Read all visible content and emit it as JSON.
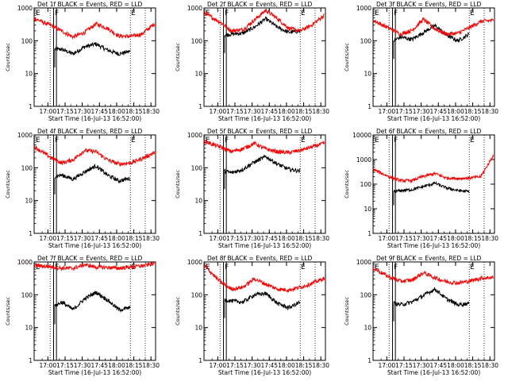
{
  "figure": {
    "start_time_label": "Start Time (16-Jul-13 16:52:00)",
    "ylabel": "Counts/sec",
    "colors": {
      "events": "#000000",
      "lld": "#ff0000",
      "axes": "#000000",
      "background": "#ffffff"
    }
  },
  "chart_data": [
    {
      "type": "line",
      "title": "Det 1f BLACK = Events, RED = LLD",
      "xlabel": "Start Time (16-Jul-13 16:52:00)",
      "ylabel": "Counts/sec",
      "yscale": "log",
      "ylim": [
        1,
        1000
      ],
      "xlim_min": [
        -4,
        102
      ],
      "x_ticks": [
        8,
        23,
        38,
        53,
        68,
        83,
        98
      ],
      "x_tick_labels": [
        "17:00",
        "17:15",
        "17:30",
        "17:45",
        "18:00",
        "18:15",
        "18:30"
      ],
      "y_ticks": [
        1,
        10,
        100,
        1000
      ],
      "y_tick_labels": [
        "1",
        "10",
        "100",
        "1000"
      ],
      "markers": [
        "E",
        "F",
        "E"
      ],
      "series": [
        {
          "name": "Events",
          "color": "#000000",
          "x": [
            14,
            20,
            30,
            40,
            50,
            60,
            70,
            80
          ],
          "y": [
            55,
            55,
            40,
            65,
            80,
            52,
            40,
            48
          ]
        },
        {
          "name": "LLD",
          "color": "#ff0000",
          "x": [
            -4,
            10,
            20,
            30,
            40,
            50,
            60,
            70,
            80,
            90,
            101
          ],
          "y": [
            480,
            300,
            200,
            130,
            180,
            330,
            240,
            140,
            135,
            160,
            330
          ]
        }
      ]
    },
    {
      "type": "line",
      "title": "Det 2f BLACK = Events, RED = LLD",
      "xlabel": "Start Time (16-Jul-13 16:52:00)",
      "ylabel": "Counts/sec",
      "yscale": "log",
      "ylim": [
        1,
        1000
      ],
      "x_ticks": [
        8,
        23,
        38,
        53,
        68,
        83,
        98
      ],
      "x_tick_labels": [
        "17:00",
        "17:15",
        "17:30",
        "17:45",
        "18:00",
        "18:15",
        "18:30"
      ],
      "y_ticks": [
        1,
        10,
        100,
        1000
      ],
      "y_tick_labels": [
        "1",
        "10",
        "100",
        "1000"
      ],
      "markers": [
        "E",
        "F",
        "E"
      ],
      "series": [
        {
          "name": "Events",
          "color": "#000000",
          "x": [
            14,
            20,
            30,
            40,
            50,
            60,
            70,
            80
          ],
          "y": [
            150,
            160,
            170,
            260,
            470,
            260,
            180,
            200
          ]
        },
        {
          "name": "LLD",
          "color": "#ff0000",
          "x": [
            -4,
            10,
            20,
            30,
            40,
            50,
            60,
            70,
            80,
            90,
            101
          ],
          "y": [
            720,
            370,
            200,
            220,
            430,
            850,
            480,
            240,
            200,
            300,
            600
          ]
        }
      ]
    },
    {
      "type": "line",
      "title": "Det 3f BLACK = Events, RED = LLD",
      "xlabel": "Start Time (16-Jul-13 16:52:00)",
      "ylabel": "Counts/sec",
      "yscale": "log",
      "ylim": [
        1,
        1000
      ],
      "x_ticks": [
        8,
        23,
        38,
        53,
        68,
        83,
        98
      ],
      "x_tick_labels": [
        "17:00",
        "17:15",
        "17:30",
        "17:45",
        "18:00",
        "18:15",
        "18:30"
      ],
      "y_ticks": [
        1,
        10,
        100,
        1000
      ],
      "y_tick_labels": [
        "1",
        "10",
        "100",
        "1000"
      ],
      "markers": [
        "E",
        "F",
        "E"
      ],
      "series": [
        {
          "name": "Events",
          "color": "#000000",
          "x": [
            14,
            20,
            30,
            40,
            50,
            60,
            70,
            80
          ],
          "y": [
            100,
            130,
            110,
            180,
            290,
            150,
            100,
            160
          ]
        },
        {
          "name": "LLD",
          "color": "#ff0000",
          "x": [
            -4,
            10,
            20,
            30,
            40,
            50,
            60,
            70,
            80,
            90,
            101
          ],
          "y": [
            420,
            240,
            160,
            210,
            450,
            230,
            160,
            170,
            250,
            390,
            420
          ]
        }
      ]
    },
    {
      "type": "line",
      "title": "Det 4f BLACK = Events, RED = LLD",
      "xlabel": "Start Time (16-Jul-13 16:52:00)",
      "ylabel": "Counts/sec",
      "yscale": "log",
      "ylim": [
        1,
        1000
      ],
      "x_ticks": [
        8,
        23,
        38,
        53,
        68,
        83,
        98
      ],
      "x_tick_labels": [
        "17:00",
        "17:15",
        "17:30",
        "17:45",
        "18:00",
        "18:15",
        "18:30"
      ],
      "y_ticks": [
        1,
        10,
        100,
        1000
      ],
      "y_tick_labels": [
        "1",
        "10",
        "100",
        "1000"
      ],
      "markers": [
        "E",
        "F",
        "E"
      ],
      "series": [
        {
          "name": "Events",
          "color": "#000000",
          "x": [
            14,
            20,
            30,
            40,
            50,
            60,
            70,
            80
          ],
          "y": [
            55,
            60,
            45,
            75,
            115,
            60,
            40,
            48
          ]
        },
        {
          "name": "LLD",
          "color": "#ff0000",
          "x": [
            -4,
            10,
            20,
            30,
            40,
            50,
            60,
            70,
            80,
            90,
            101
          ],
          "y": [
            440,
            210,
            140,
            175,
            340,
            310,
            175,
            130,
            140,
            190,
            290
          ]
        }
      ]
    },
    {
      "type": "line",
      "title": "Det 5f BLACK = Events, RED = LLD",
      "xlabel": "Start Time (16-Jul-13 16:52:00)",
      "ylabel": "Counts/sec",
      "yscale": "log",
      "ylim": [
        1,
        1000
      ],
      "x_ticks": [
        8,
        23,
        38,
        53,
        68,
        83,
        98
      ],
      "x_tick_labels": [
        "17:00",
        "17:15",
        "17:30",
        "17:45",
        "18:00",
        "18:15",
        "18:30"
      ],
      "y_ticks": [
        1,
        10,
        100,
        1000
      ],
      "y_tick_labels": [
        "1",
        "10",
        "100",
        "1000"
      ],
      "markers": [
        "E",
        "F",
        "E"
      ],
      "series": [
        {
          "name": "Events",
          "color": "#000000",
          "x": [
            14,
            20,
            30,
            40,
            50,
            60,
            70,
            80
          ],
          "y": [
            80,
            70,
            90,
            150,
            220,
            130,
            90,
            80
          ]
        },
        {
          "name": "LLD",
          "color": "#ff0000",
          "x": [
            -4,
            10,
            20,
            30,
            40,
            50,
            60,
            70,
            80,
            90,
            101
          ],
          "y": [
            650,
            430,
            310,
            380,
            560,
            370,
            310,
            290,
            340,
            430,
            560
          ]
        }
      ]
    },
    {
      "type": "line",
      "title": "Det 6f BLACK = Events, RED = LLD",
      "xlabel": "Start Time (16-Jul-13 16:52:00)",
      "ylabel": "Counts/sec",
      "yscale": "log",
      "ylim": [
        1,
        10000
      ],
      "x_ticks": [
        8,
        23,
        38,
        53,
        68,
        83,
        98
      ],
      "x_tick_labels": [
        "17:00",
        "17:15",
        "17:30",
        "17:45",
        "18:00",
        "18:15",
        "18:30"
      ],
      "y_ticks": [
        1,
        10,
        100,
        1000,
        10000
      ],
      "y_tick_labels": [
        "1",
        "10",
        "100",
        "1000",
        "10000"
      ],
      "markers": [
        "E",
        "F",
        "E"
      ],
      "series": [
        {
          "name": "Events",
          "color": "#000000",
          "x": [
            14,
            20,
            30,
            40,
            50,
            60,
            70,
            80
          ],
          "y": [
            50,
            55,
            60,
            80,
            110,
            70,
            55,
            50
          ]
        },
        {
          "name": "LLD",
          "color": "#ff0000",
          "x": [
            -4,
            10,
            20,
            30,
            40,
            50,
            60,
            70,
            80,
            90,
            101
          ],
          "y": [
            400,
            200,
            140,
            140,
            210,
            270,
            180,
            170,
            180,
            200,
            1500
          ]
        }
      ]
    },
    {
      "type": "line",
      "title": "Det 7f BLACK = Events, RED = LLD",
      "xlabel": "Start Time (16-Jul-13 16:52:00)",
      "ylabel": "Counts/sec",
      "yscale": "log",
      "ylim": [
        1,
        1000
      ],
      "x_ticks": [
        8,
        23,
        38,
        53,
        68,
        83,
        98
      ],
      "x_tick_labels": [
        "17:00",
        "17:15",
        "17:30",
        "17:45",
        "18:00",
        "18:15",
        "18:30"
      ],
      "y_ticks": [
        1,
        10,
        100,
        1000
      ],
      "y_tick_labels": [
        "1",
        "10",
        "100",
        "1000"
      ],
      "markers": [
        "E",
        "F",
        "E"
      ],
      "series": [
        {
          "name": "Events",
          "color": "#000000",
          "x": [
            14,
            20,
            30,
            40,
            50,
            60,
            70,
            80
          ],
          "y": [
            45,
            60,
            35,
            75,
            120,
            70,
            35,
            40
          ]
        },
        {
          "name": "LLD",
          "color": "#ff0000",
          "x": [
            -4,
            10,
            20,
            30,
            40,
            50,
            60,
            70,
            80,
            90,
            101
          ],
          "y": [
            780,
            720,
            650,
            640,
            830,
            700,
            680,
            650,
            700,
            760,
            900
          ]
        }
      ]
    },
    {
      "type": "line",
      "title": "Det 8f BLACK = Events, RED = LLD",
      "xlabel": "Start Time (16-Jul-13 16:52:00)",
      "ylabel": "Counts/sec",
      "yscale": "log",
      "ylim": [
        1,
        1000
      ],
      "x_ticks": [
        8,
        23,
        38,
        53,
        68,
        83,
        98
      ],
      "x_tick_labels": [
        "17:00",
        "17:15",
        "17:30",
        "17:45",
        "18:00",
        "18:15",
        "18:30"
      ],
      "y_ticks": [
        1,
        10,
        100,
        1000
      ],
      "y_tick_labels": [
        "1",
        "10",
        "100",
        "1000"
      ],
      "markers": [
        "E",
        "F",
        "E"
      ],
      "series": [
        {
          "name": "Events",
          "color": "#000000",
          "x": [
            14,
            20,
            30,
            40,
            50,
            60,
            70,
            80
          ],
          "y": [
            70,
            65,
            60,
            100,
            110,
            55,
            40,
            60
          ]
        },
        {
          "name": "LLD",
          "color": "#ff0000",
          "x": [
            -4,
            10,
            20,
            30,
            40,
            50,
            60,
            70,
            80,
            90,
            101
          ],
          "y": [
            800,
            250,
            150,
            170,
            310,
            210,
            150,
            140,
            170,
            220,
            320
          ]
        }
      ]
    },
    {
      "type": "line",
      "title": "Det 9f BLACK = Events, RED = LLD",
      "xlabel": "Start Time (16-Jul-13 16:52:00)",
      "ylabel": "Counts/sec",
      "yscale": "log",
      "ylim": [
        1,
        1000
      ],
      "x_ticks": [
        8,
        23,
        38,
        53,
        68,
        83,
        98
      ],
      "x_tick_labels": [
        "17:00",
        "17:15",
        "17:30",
        "17:45",
        "18:00",
        "18:15",
        "18:30"
      ],
      "y_ticks": [
        1,
        10,
        100,
        1000
      ],
      "y_tick_labels": [
        "1",
        "10",
        "100",
        "1000"
      ],
      "markers": [
        "E",
        "F",
        "E"
      ],
      "series": [
        {
          "name": "Events",
          "color": "#000000",
          "x": [
            14,
            20,
            30,
            40,
            50,
            60,
            70,
            80
          ],
          "y": [
            55,
            50,
            60,
            95,
            150,
            75,
            50,
            55
          ]
        },
        {
          "name": "LLD",
          "color": "#ff0000",
          "x": [
            -4,
            10,
            20,
            30,
            40,
            50,
            60,
            70,
            80,
            90,
            101
          ],
          "y": [
            650,
            350,
            260,
            280,
            470,
            330,
            250,
            230,
            260,
            320,
            340
          ]
        }
      ]
    }
  ]
}
